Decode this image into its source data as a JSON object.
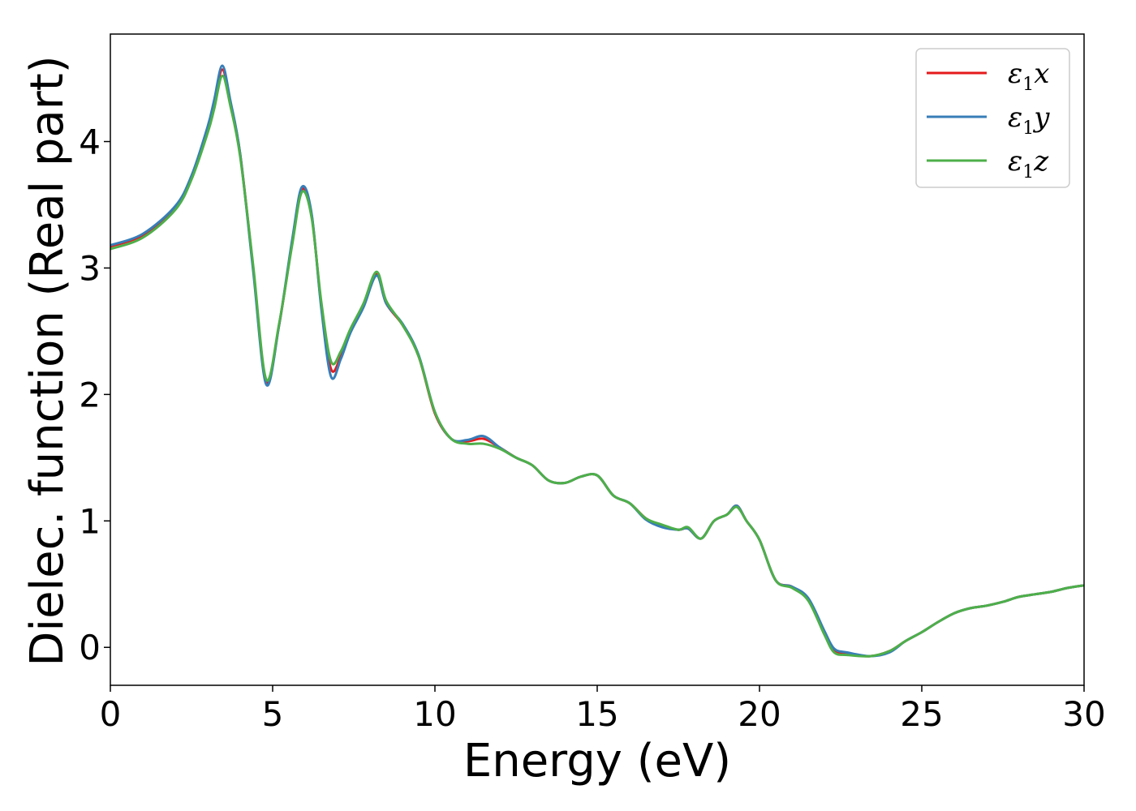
{
  "chart_data": {
    "type": "line",
    "title": "",
    "xlabel": "Energy (eV)",
    "ylabel": "Dielec. function (Real part)",
    "xlim": [
      0,
      30
    ],
    "ylim": [
      -0.3,
      4.85
    ],
    "xticks": [
      0,
      5,
      10,
      15,
      20,
      25,
      30
    ],
    "yticks": [
      0,
      1,
      2,
      3,
      4
    ],
    "grid": false,
    "legend_position": "top-right",
    "series": [
      {
        "name": "ε1x",
        "legend": {
          "base": "ε",
          "sub": "1",
          "suffix": "x"
        },
        "color": "#e41a1c",
        "x": [
          0,
          1,
          2,
          2.5,
          3,
          3.2,
          3.45,
          3.7,
          4.0,
          4.4,
          4.8,
          5.2,
          5.6,
          5.9,
          6.2,
          6.5,
          6.8,
          7.1,
          7.4,
          7.8,
          8.2,
          8.5,
          9.0,
          9.5,
          10.0,
          10.5,
          11.0,
          11.5,
          12.0,
          12.5,
          13.0,
          13.5,
          14.0,
          14.5,
          15.0,
          15.5,
          16.0,
          16.5,
          17.0,
          17.5,
          17.8,
          18.2,
          18.6,
          19.0,
          19.3,
          19.6,
          20.0,
          20.5,
          21.0,
          21.5,
          22.0,
          22.3,
          22.7,
          23.4,
          24.0,
          24.5,
          25.0,
          25.5,
          26.0,
          26.5,
          27.0,
          27.5,
          28.0,
          28.5,
          29.0,
          29.5,
          30.0
        ],
        "y": [
          3.17,
          3.26,
          3.48,
          3.72,
          4.1,
          4.3,
          4.57,
          4.3,
          3.9,
          3.0,
          2.1,
          2.55,
          3.2,
          3.62,
          3.42,
          2.7,
          2.2,
          2.3,
          2.5,
          2.7,
          2.95,
          2.72,
          2.55,
          2.3,
          1.85,
          1.65,
          1.63,
          1.65,
          1.58,
          1.5,
          1.44,
          1.32,
          1.3,
          1.35,
          1.36,
          1.2,
          1.14,
          1.02,
          0.96,
          0.93,
          0.94,
          0.86,
          1.0,
          1.05,
          1.12,
          1.0,
          0.85,
          0.53,
          0.48,
          0.38,
          0.12,
          -0.02,
          -0.05,
          -0.07,
          -0.03,
          0.05,
          0.12,
          0.2,
          0.27,
          0.31,
          0.33,
          0.36,
          0.4,
          0.42,
          0.44,
          0.47,
          0.49
        ]
      },
      {
        "name": "ε1y",
        "legend": {
          "base": "ε",
          "sub": "1",
          "suffix": "y"
        },
        "color": "#377eb8",
        "x": [
          0,
          1,
          2,
          2.5,
          3,
          3.2,
          3.45,
          3.7,
          4.0,
          4.4,
          4.8,
          5.2,
          5.6,
          5.9,
          6.2,
          6.5,
          6.8,
          7.1,
          7.4,
          7.8,
          8.2,
          8.5,
          9.0,
          9.5,
          10.0,
          10.5,
          11.0,
          11.5,
          12.0,
          12.5,
          13.0,
          13.5,
          14.0,
          14.5,
          15.0,
          15.5,
          16.0,
          16.5,
          17.0,
          17.5,
          17.8,
          18.2,
          18.6,
          19.0,
          19.3,
          19.6,
          20.0,
          20.5,
          21.0,
          21.5,
          22.0,
          22.3,
          22.7,
          23.4,
          24.0,
          24.5,
          25.0,
          25.5,
          26.0,
          26.5,
          27.0,
          27.5,
          28.0,
          28.5,
          29.0,
          29.5,
          30.0
        ],
        "y": [
          3.18,
          3.27,
          3.49,
          3.73,
          4.12,
          4.33,
          4.6,
          4.32,
          3.9,
          2.98,
          2.08,
          2.55,
          3.22,
          3.64,
          3.43,
          2.68,
          2.14,
          2.28,
          2.49,
          2.69,
          2.94,
          2.72,
          2.56,
          2.31,
          1.86,
          1.65,
          1.64,
          1.67,
          1.58,
          1.5,
          1.44,
          1.32,
          1.3,
          1.35,
          1.36,
          1.2,
          1.14,
          1.01,
          0.95,
          0.93,
          0.94,
          0.86,
          1.0,
          1.05,
          1.12,
          1.0,
          0.85,
          0.53,
          0.48,
          0.39,
          0.13,
          -0.01,
          -0.04,
          -0.07,
          -0.04,
          0.05,
          0.12,
          0.2,
          0.27,
          0.31,
          0.33,
          0.36,
          0.4,
          0.42,
          0.44,
          0.47,
          0.49
        ]
      },
      {
        "name": "ε1z",
        "legend": {
          "base": "ε",
          "sub": "1",
          "suffix": "z"
        },
        "color": "#4daf4a",
        "x": [
          0,
          1,
          2,
          2.5,
          3,
          3.2,
          3.45,
          3.7,
          4.0,
          4.4,
          4.8,
          5.2,
          5.6,
          5.9,
          6.2,
          6.5,
          6.8,
          7.1,
          7.4,
          7.8,
          8.2,
          8.5,
          9.0,
          9.5,
          10.0,
          10.5,
          11.0,
          11.5,
          12.0,
          12.5,
          13.0,
          13.5,
          14.0,
          14.5,
          15.0,
          15.5,
          16.0,
          16.5,
          17.0,
          17.5,
          17.8,
          18.2,
          18.6,
          19.0,
          19.3,
          19.6,
          20.0,
          20.5,
          21.0,
          21.5,
          22.0,
          22.3,
          22.7,
          23.4,
          24.0,
          24.5,
          25.0,
          25.5,
          26.0,
          26.5,
          27.0,
          27.5,
          28.0,
          28.5,
          29.0,
          29.5,
          30.0
        ],
        "y": [
          3.15,
          3.24,
          3.46,
          3.7,
          4.07,
          4.26,
          4.52,
          4.28,
          3.88,
          3.02,
          2.12,
          2.56,
          3.18,
          3.6,
          3.4,
          2.73,
          2.26,
          2.34,
          2.52,
          2.72,
          2.97,
          2.74,
          2.55,
          2.3,
          1.86,
          1.65,
          1.61,
          1.61,
          1.57,
          1.5,
          1.44,
          1.32,
          1.3,
          1.35,
          1.36,
          1.2,
          1.14,
          1.02,
          0.97,
          0.93,
          0.95,
          0.86,
          1.0,
          1.05,
          1.11,
          1.0,
          0.85,
          0.53,
          0.47,
          0.37,
          0.1,
          -0.04,
          -0.06,
          -0.07,
          -0.03,
          0.05,
          0.12,
          0.2,
          0.27,
          0.31,
          0.33,
          0.36,
          0.4,
          0.42,
          0.44,
          0.47,
          0.49
        ]
      }
    ]
  }
}
